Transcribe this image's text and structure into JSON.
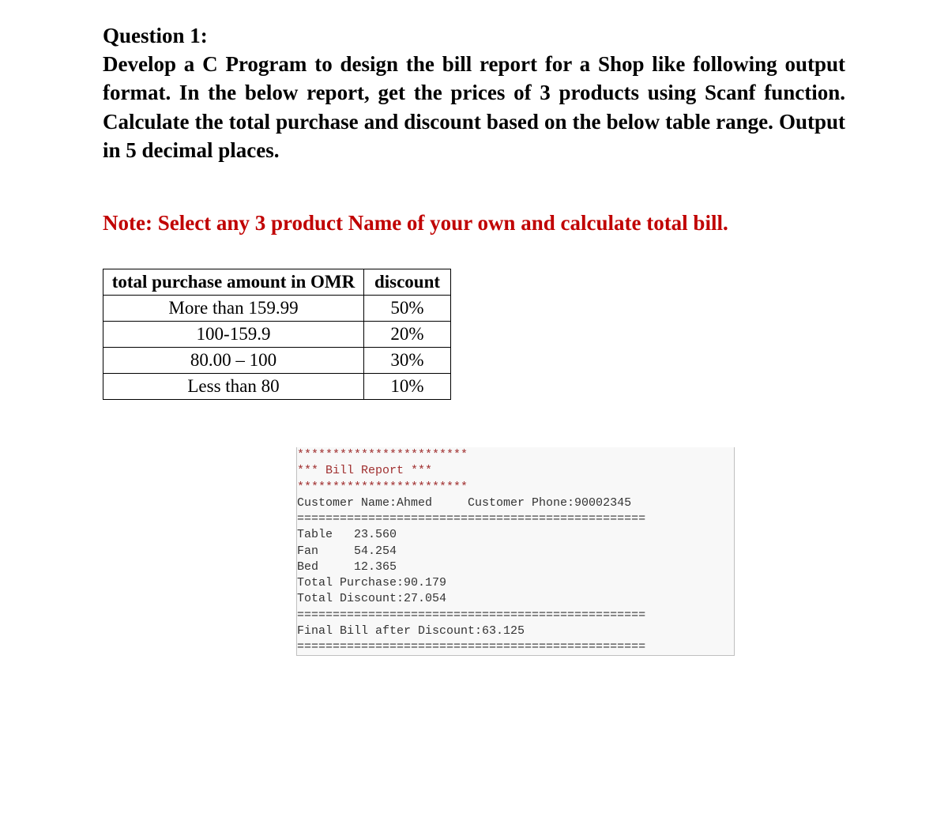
{
  "question": {
    "title": "Question 1:",
    "body": "Develop a C Program to design the bill report for a Shop like following output format. In the below report, get the prices of 3 products using Scanf function. Calculate the total purchase and discount based on the below table range. Output in 5 decimal places."
  },
  "note": "Note: Select any 3 product Name of your own and calculate total bill.",
  "discount_table": {
    "headers": [
      "total purchase amount in OMR",
      "discount"
    ],
    "rows": [
      [
        "More than 159.99",
        "50%"
      ],
      [
        "100-159.9",
        "20%"
      ],
      [
        "80.00 – 100",
        "30%"
      ],
      [
        "Less than 80",
        "10%"
      ]
    ],
    "border_color": "#000000",
    "font_size": 23
  },
  "console": {
    "stars_line": "************************",
    "title": "*** Bill Report ***",
    "customer_line": "Customer Name:Ahmed     Customer Phone:90002345",
    "divider": "=================================================",
    "products": [
      {
        "name": "Table",
        "price": "23.560"
      },
      {
        "name": "Fan",
        "price": "54.254"
      },
      {
        "name": "Bed",
        "price": "12.365"
      }
    ],
    "total_purchase": "Total Purchase:90.179",
    "total_discount": "Total Discount:27.054",
    "final_bill": "Final Bill after Discount:63.125",
    "background_color": "#f8f8f8",
    "border_color": "#c0c0c0",
    "text_color": "#333333",
    "red_color": "#a03030",
    "font_size": 15
  },
  "colors": {
    "black": "#000000",
    "red": "#c00000",
    "white": "#ffffff"
  }
}
